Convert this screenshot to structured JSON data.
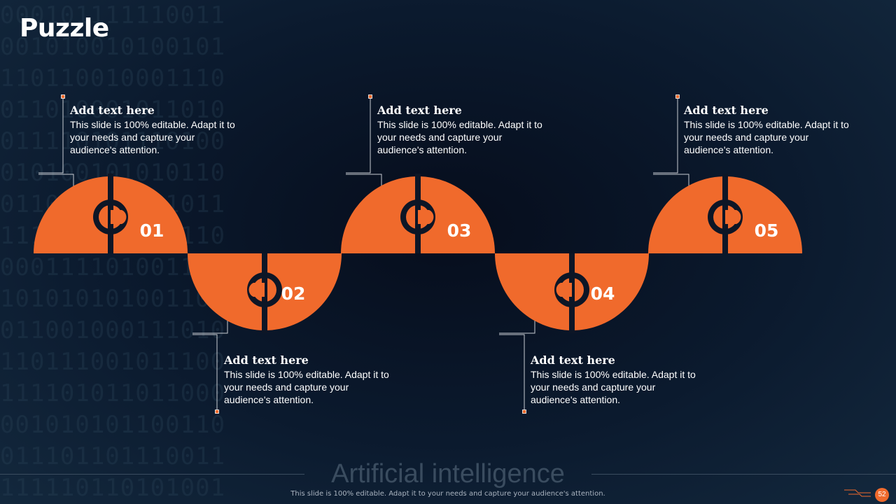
{
  "title": "Puzzle",
  "accent_color": "#f06a2c",
  "pieces": [
    {
      "number": "01",
      "heading": "Add text here",
      "body": "This slide is 100% editable. Adapt it to your needs and capture your audience's attention."
    },
    {
      "number": "02",
      "heading": "Add text here",
      "body": "This slide is 100% editable. Adapt it to your needs and capture your audience's attention."
    },
    {
      "number": "03",
      "heading": "Add text here",
      "body": "This slide is 100% editable. Adapt it to your needs and capture your audience's attention."
    },
    {
      "number": "04",
      "heading": "Add text here",
      "body": "This slide is 100% editable. Adapt it to your needs and capture your audience's attention."
    },
    {
      "number": "05",
      "heading": "Add text here",
      "body": "This slide is 100% editable. Adapt it to your needs and capture your audience's attention."
    }
  ],
  "footer": {
    "title": "Artificial intelligence",
    "note": "This slide is 100% editable. Adapt it to your needs and capture your audience's attention.",
    "page_number": "52"
  }
}
